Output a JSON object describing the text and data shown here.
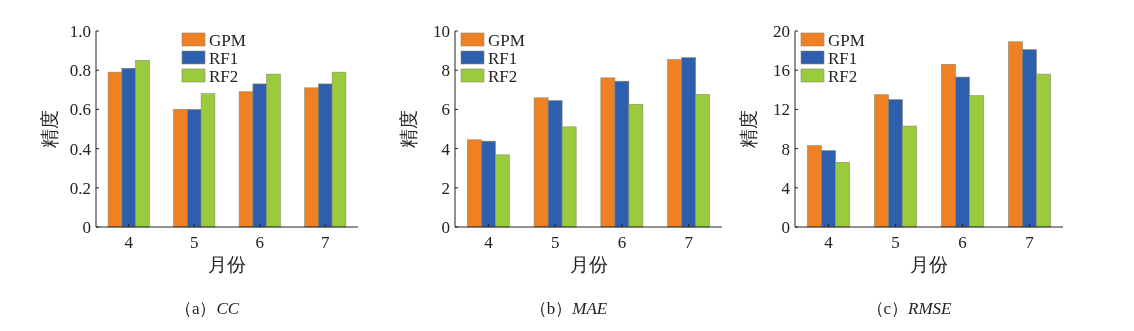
{
  "chart_data": [
    {
      "type": "bar",
      "title": "（a）*CC*",
      "xlabel": "月份",
      "ylabel": "精度",
      "categories": [
        "4",
        "5",
        "6",
        "7"
      ],
      "ylim": [
        0,
        1.0
      ],
      "yticks": [
        0,
        {
          "value": 0.2,
          "label": "0.2"
        },
        {
          "value": 0.4,
          "label": "0.4"
        },
        {
          "value": 0.6,
          "label": "0.6"
        },
        {
          "value": 0.8,
          "label": "0.8"
        },
        {
          "value": 1.0,
          "label": "1.0"
        }
      ],
      "legend": "top",
      "grid": false,
      "series": [
        {
          "name": "GPM",
          "color": "#f08024",
          "values": [
            0.79,
            0.6,
            0.69,
            0.71
          ]
        },
        {
          "name": "RF1",
          "color": "#2e5fae",
          "values": [
            0.81,
            0.6,
            0.73,
            0.73
          ]
        },
        {
          "name": "RF2",
          "color": "#9acb3c",
          "values": [
            0.85,
            0.68,
            0.78,
            0.79
          ]
        }
      ]
    },
    {
      "type": "bar",
      "title": "（b）*MAE*",
      "xlabel": "月份",
      "ylabel": "精度",
      "categories": [
        "4",
        "5",
        "6",
        "7"
      ],
      "ylim": [
        0,
        10
      ],
      "yticks": [
        0,
        2,
        4,
        6,
        8,
        10
      ],
      "legend": "top left",
      "grid": false,
      "series": [
        {
          "name": "GPM",
          "color": "#f08024",
          "values": [
            4.45,
            6.59,
            7.61,
            8.54
          ]
        },
        {
          "name": "RF1",
          "color": "#2e5fae",
          "values": [
            4.38,
            6.45,
            7.44,
            8.64
          ]
        },
        {
          "name": "RF2",
          "color": "#9acb3c",
          "values": [
            3.68,
            5.11,
            6.26,
            6.77
          ]
        }
      ]
    },
    {
      "type": "bar",
      "title": "（c）*RMSE*",
      "xlabel": "月份",
      "ylabel": "精度",
      "categories": [
        "4",
        "5",
        "6",
        "7"
      ],
      "ylim": [
        0,
        20
      ],
      "yticks": [
        0,
        4,
        8,
        12,
        16,
        20
      ],
      "legend": "top left",
      "grid": false,
      "series": [
        {
          "name": "GPM",
          "color": "#f08024",
          "values": [
            8.3,
            13.5,
            16.6,
            18.9
          ]
        },
        {
          "name": "RF1",
          "color": "#2e5fae",
          "values": [
            7.8,
            13.0,
            15.3,
            18.1
          ]
        },
        {
          "name": "RF2",
          "color": "#9acb3c",
          "values": [
            6.6,
            10.3,
            13.4,
            15.6
          ]
        }
      ]
    }
  ]
}
